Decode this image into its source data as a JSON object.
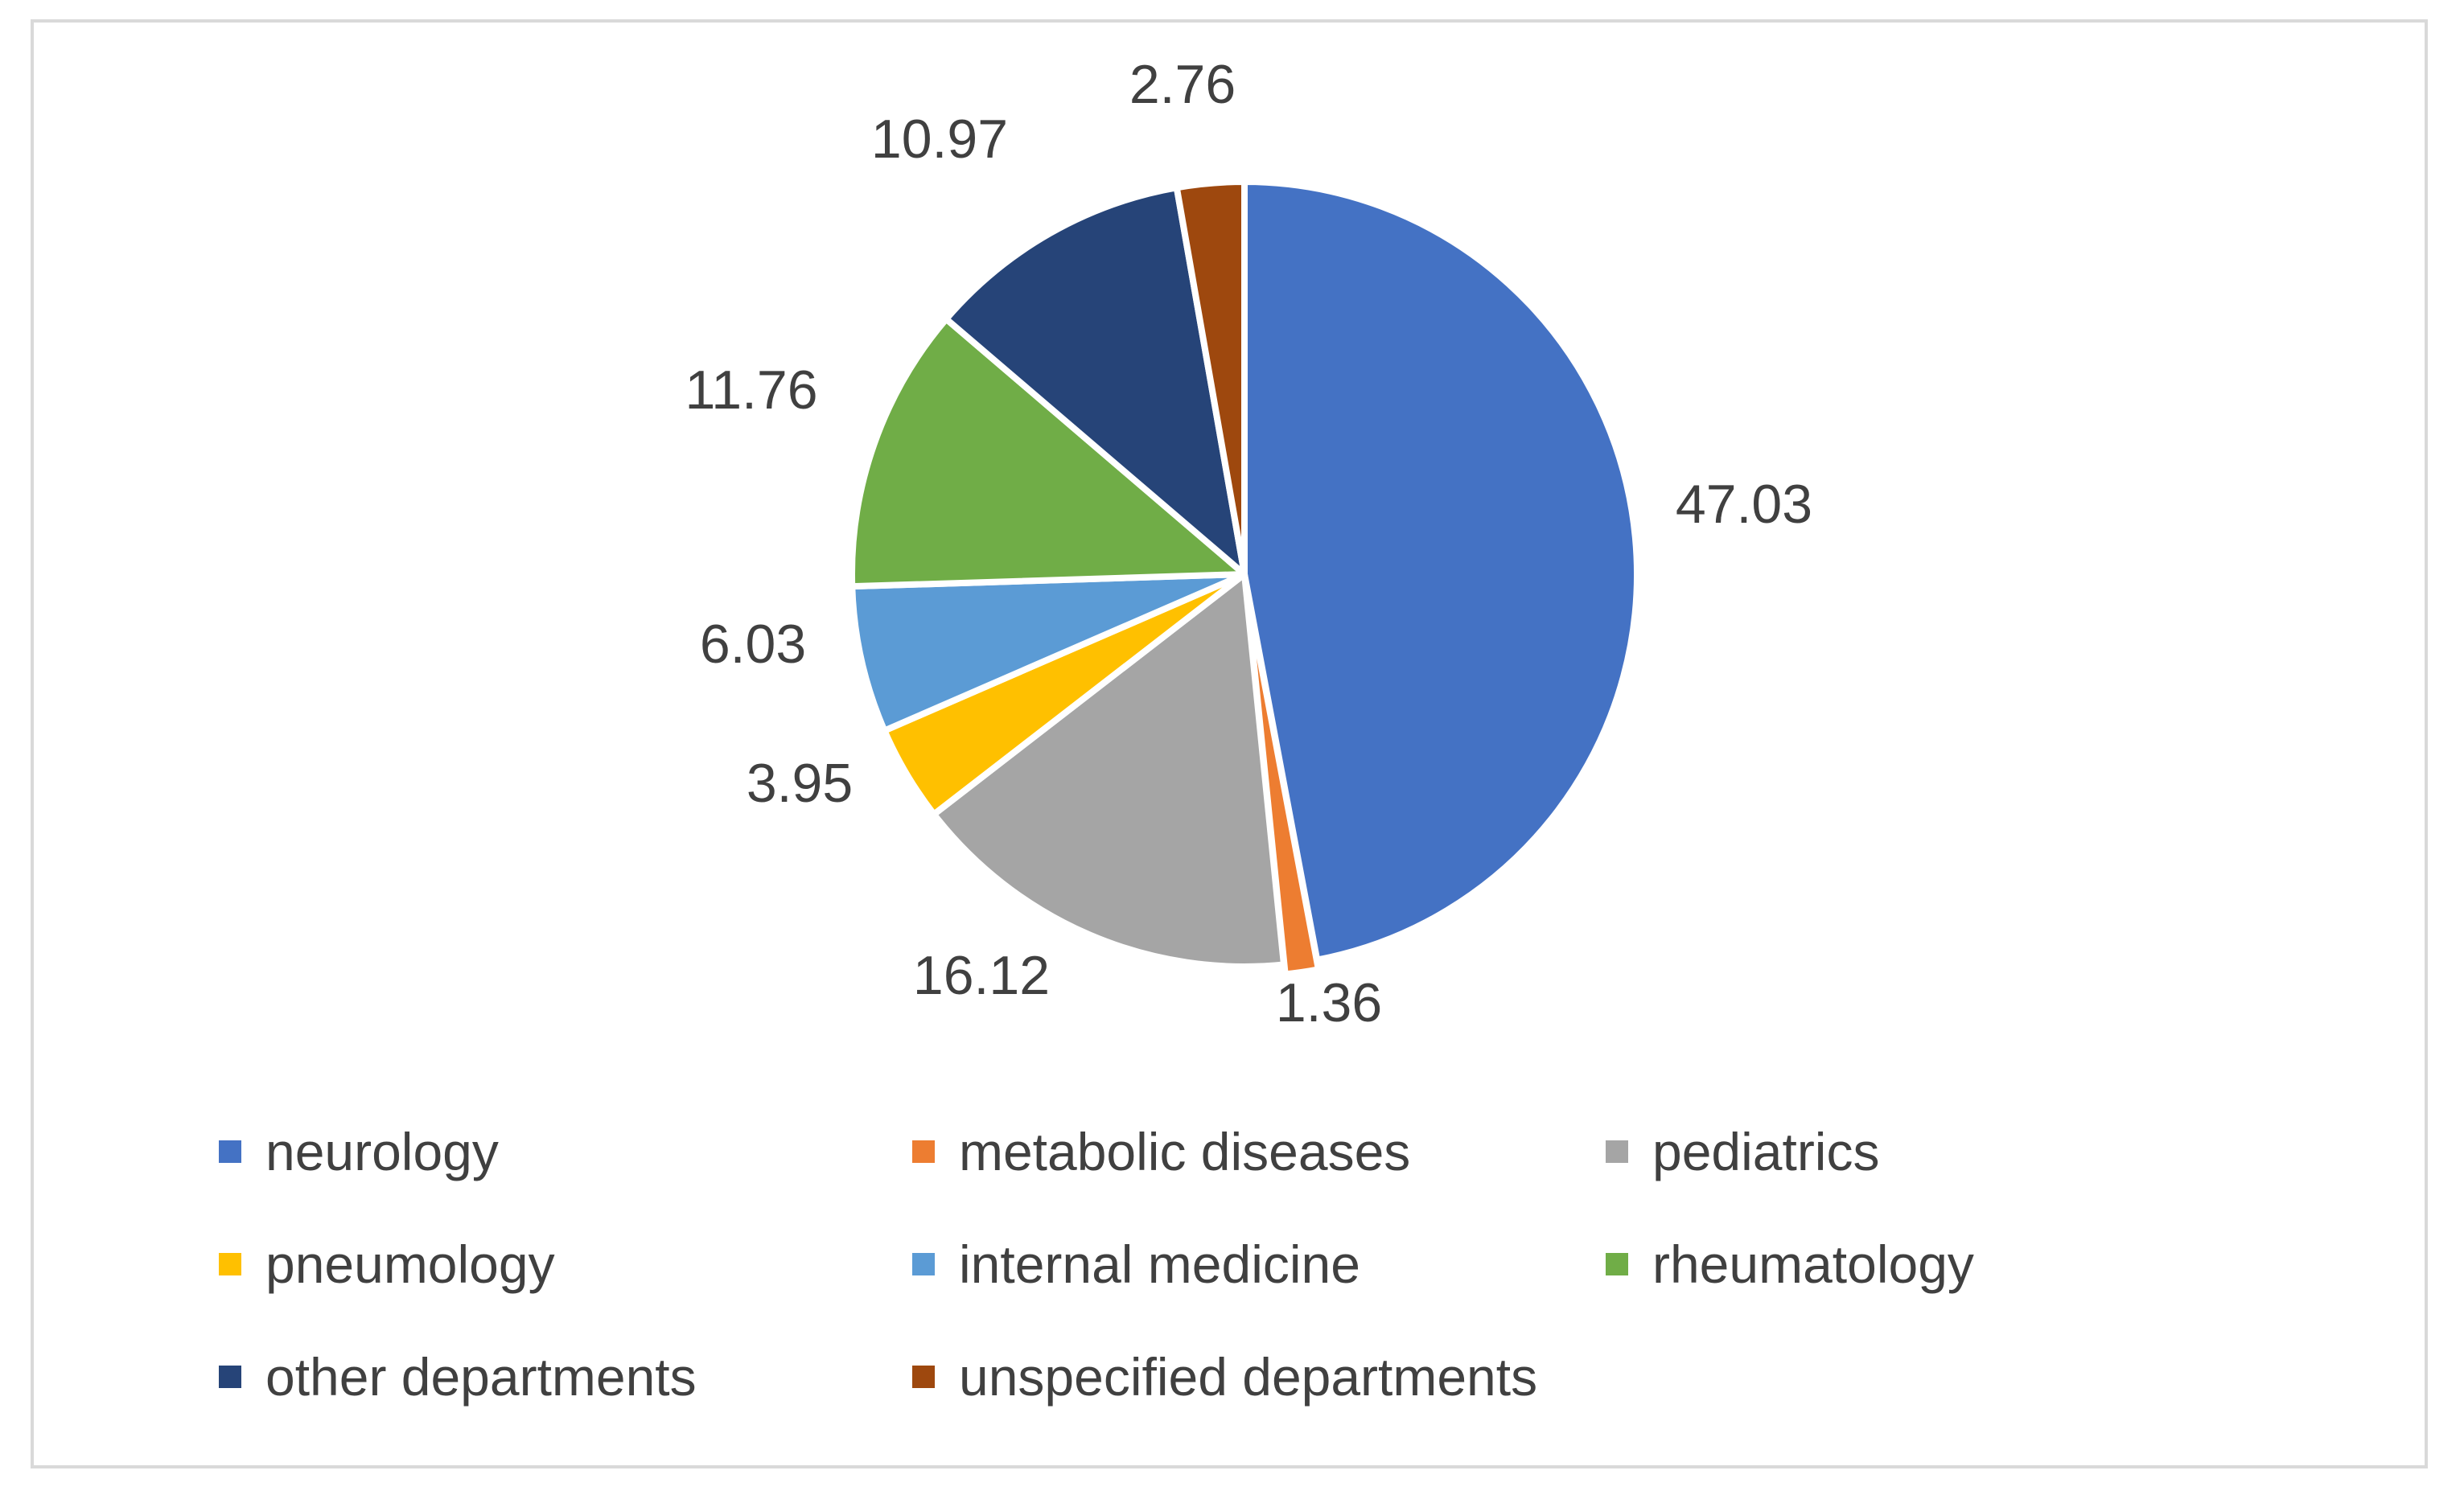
{
  "chart_data": {
    "type": "pie",
    "title": "",
    "legend_position": "bottom",
    "slices": [
      {
        "label": "neurology",
        "value": 47.03,
        "value_label": "47.03",
        "color": "#4472C4"
      },
      {
        "label": "metabolic diseases",
        "value": 1.36,
        "value_label": "1.36",
        "color": "#ED7D31"
      },
      {
        "label": "pediatrics",
        "value": 16.12,
        "value_label": "16.12",
        "color": "#A5A5A5"
      },
      {
        "label": "pneumology",
        "value": 3.95,
        "value_label": "3.95",
        "color": "#FFC000"
      },
      {
        "label": "internal medicine",
        "value": 6.03,
        "value_label": "6.03",
        "color": "#5B9BD5"
      },
      {
        "label": "rheumatology",
        "value": 11.76,
        "value_label": "11.76",
        "color": "#70AD47"
      },
      {
        "label": "other departments",
        "value": 10.97,
        "value_label": "10.97",
        "color": "#264478"
      },
      {
        "label": "unspecified departments",
        "value": 2.76,
        "value_label": "2.76",
        "color": "#9E480E"
      }
    ]
  }
}
